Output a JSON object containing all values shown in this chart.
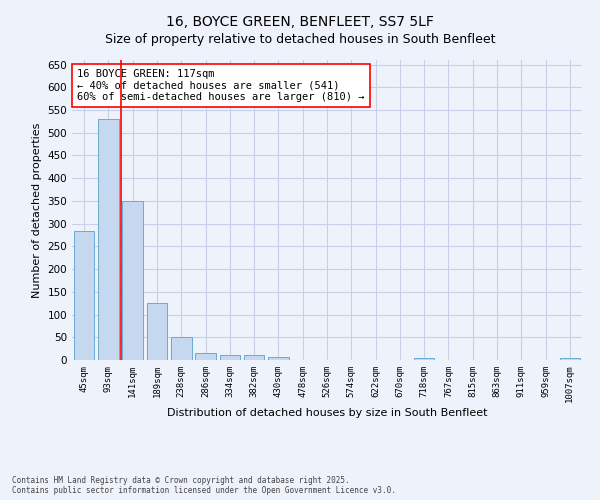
{
  "title": "16, BOYCE GREEN, BENFLEET, SS7 5LF",
  "subtitle": "Size of property relative to detached houses in South Benfleet",
  "xlabel": "Distribution of detached houses by size in South Benfleet",
  "ylabel": "Number of detached properties",
  "categories": [
    "45sqm",
    "93sqm",
    "141sqm",
    "189sqm",
    "238sqm",
    "286sqm",
    "334sqm",
    "382sqm",
    "430sqm",
    "478sqm",
    "526sqm",
    "574sqm",
    "622sqm",
    "670sqm",
    "718sqm",
    "767sqm",
    "815sqm",
    "863sqm",
    "911sqm",
    "959sqm",
    "1007sqm"
  ],
  "values": [
    283,
    530,
    350,
    125,
    50,
    15,
    12,
    10,
    7,
    0,
    0,
    0,
    0,
    0,
    5,
    0,
    0,
    0,
    0,
    0,
    5
  ],
  "bar_color": "#c5d8f0",
  "bar_edge_color": "#6aaad4",
  "vline_x_index": 1.5,
  "vline_color": "red",
  "annotation_text": "16 BOYCE GREEN: 117sqm\n← 40% of detached houses are smaller (541)\n60% of semi-detached houses are larger (810) →",
  "annotation_box_color": "white",
  "annotation_box_edge": "red",
  "ylim": [
    0,
    660
  ],
  "yticks": [
    0,
    50,
    100,
    150,
    200,
    250,
    300,
    350,
    400,
    450,
    500,
    550,
    600,
    650
  ],
  "footer": "Contains HM Land Registry data © Crown copyright and database right 2025.\nContains public sector information licensed under the Open Government Licence v3.0.",
  "background_color": "#eef2fb",
  "grid_color": "#c8d0e8",
  "title_fontsize": 10,
  "subtitle_fontsize": 9
}
